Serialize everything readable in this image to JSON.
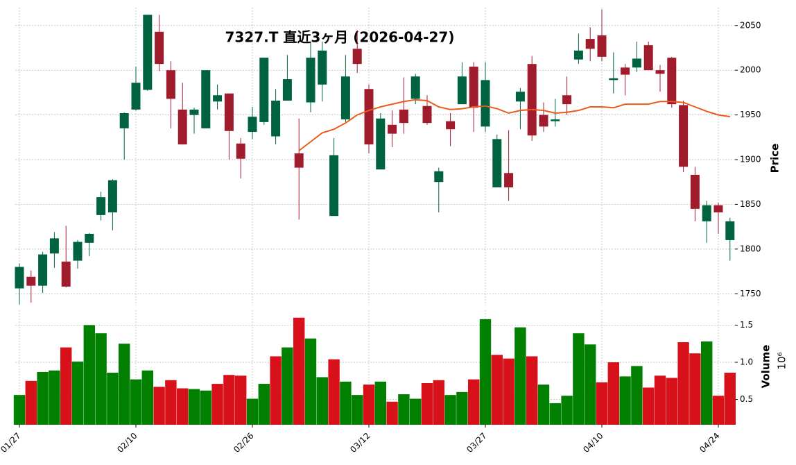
{
  "chart_data": {
    "type": "candlestick",
    "title": "7327.T  直近3ヶ月 (2026-04-27)",
    "categories": [
      "01/27",
      null,
      null,
      null,
      null,
      null,
      null,
      null,
      null,
      null,
      "02/10",
      null,
      null,
      null,
      null,
      null,
      null,
      null,
      null,
      null,
      "02/26",
      null,
      null,
      null,
      null,
      null,
      null,
      null,
      null,
      null,
      "03/12",
      null,
      null,
      null,
      null,
      null,
      null,
      null,
      null,
      null,
      "03/27",
      null,
      null,
      null,
      null,
      null,
      null,
      null,
      null,
      null,
      "04/10",
      null,
      null,
      null,
      null,
      null,
      null,
      null,
      null,
      null,
      "04/24",
      null
    ],
    "open": [
      1756,
      1769,
      1759,
      1795,
      1786,
      1787,
      1807,
      1838,
      1841,
      1935,
      1956,
      1978,
      2043,
      2000,
      1956,
      1950,
      1935,
      1965,
      1974,
      1918,
      1931,
      1942,
      1926,
      1966,
      1907,
      1964,
      1984,
      1837,
      1945,
      2024,
      1979,
      1889,
      1939,
      1956,
      1968,
      1960,
      1875,
      1943,
      1962,
      2004,
      1937,
      1869,
      1885,
      1965,
      2007,
      1950,
      1943,
      1972,
      2012,
      2035,
      2039,
      1989,
      2003,
      2003,
      2028,
      2000,
      2014,
      1961,
      1883,
      1831,
      1849,
      1810
    ],
    "high": [
      1784,
      1776,
      1797,
      1819,
      1826,
      1810,
      1818,
      1864,
      1878,
      1953,
      2004,
      2062,
      2062,
      2010,
      1986,
      1958,
      2000,
      1984,
      1974,
      1924,
      1959,
      2014,
      1979,
      2017,
      1946,
      2032,
      2032,
      1924,
      2017,
      2045,
      1984,
      1952,
      1955,
      1992,
      1996,
      1972,
      1891,
      1952,
      2009,
      2009,
      2009,
      1928,
      1933,
      1980,
      2016,
      1964,
      1968,
      1993,
      2041,
      2048,
      2068,
      2020,
      2007,
      2032,
      2032,
      2006,
      2015,
      1966,
      1892,
      1854,
      1852,
      1835
    ],
    "low": [
      1738,
      1740,
      1751,
      1779,
      1757,
      1778,
      1792,
      1832,
      1821,
      1900,
      1955,
      1977,
      1999,
      1935,
      1917,
      1929,
      1935,
      1956,
      1900,
      1879,
      1923,
      1939,
      1917,
      1966,
      1833,
      1953,
      1965,
      1837,
      1942,
      1997,
      1907,
      1889,
      1914,
      1929,
      1962,
      1939,
      1841,
      1915,
      1962,
      1931,
      1931,
      1869,
      1854,
      1934,
      1921,
      1931,
      1937,
      1950,
      2007,
      2010,
      2010,
      1974,
      1972,
      1998,
      2000,
      1976,
      1958,
      1886,
      1831,
      1807,
      1817,
      1787
    ],
    "close": [
      1780,
      1759,
      1794,
      1812,
      1758,
      1808,
      1817,
      1858,
      1877,
      1952,
      1986,
      2062,
      2007,
      1968,
      1917,
      1956,
      2000,
      1972,
      1932,
      1901,
      1948,
      2014,
      1966,
      1990,
      1891,
      2014,
      2022,
      1905,
      1993,
      2007,
      1917,
      1946,
      1929,
      1941,
      1993,
      1941,
      1887,
      1934,
      1993,
      1958,
      1989,
      1923,
      1869,
      1976,
      1927,
      1937,
      1945,
      1962,
      2022,
      2024,
      2015,
      1991,
      1995,
      2013,
      2000,
      1996,
      1962,
      1892,
      1845,
      1849,
      1841,
      1831
    ],
    "up_color": "#006340",
    "down_color": "#a01c2c",
    "ma": {
      "color": "#ea5b1b",
      "values": [
        null,
        null,
        null,
        null,
        null,
        null,
        null,
        null,
        null,
        null,
        null,
        null,
        null,
        null,
        null,
        null,
        null,
        null,
        null,
        null,
        null,
        null,
        null,
        null,
        1910,
        1920,
        1930,
        1934,
        1941,
        1950,
        1955,
        1959,
        1962,
        1965,
        1967,
        1966,
        1959,
        1956,
        1957,
        1959,
        1960,
        1957,
        1952,
        1955,
        1956,
        1955,
        1952,
        1953,
        1955,
        1959,
        1959,
        1958,
        1962,
        1962,
        1962,
        1965,
        1965,
        1964,
        1959,
        1954,
        1950,
        1948
      ]
    },
    "ylabel": "Price",
    "ylim": [
      1737,
      2070
    ],
    "yticks": [
      1750,
      1800,
      1850,
      1900,
      1950,
      2000,
      2050
    ],
    "grid": true,
    "volume": {
      "ylabel": "Volume",
      "scale_label": "10⁶",
      "up_color": "#007f00",
      "down_color": "#d7101a",
      "values": [
        0.56,
        0.75,
        0.87,
        0.89,
        1.2,
        1.01,
        1.5,
        1.39,
        0.86,
        1.25,
        0.77,
        0.89,
        0.67,
        0.76,
        0.65,
        0.64,
        0.62,
        0.71,
        0.83,
        0.82,
        0.51,
        0.71,
        1.08,
        1.2,
        1.6,
        1.32,
        0.8,
        1.04,
        0.74,
        0.56,
        0.7,
        0.74,
        0.47,
        0.57,
        0.51,
        0.72,
        0.76,
        0.56,
        0.6,
        0.77,
        1.58,
        1.1,
        1.05,
        1.47,
        1.08,
        0.7,
        0.45,
        0.55,
        1.39,
        1.24,
        0.73,
        1.0,
        0.81,
        0.95,
        0.66,
        0.82,
        0.79,
        1.27,
        1.12,
        1.28,
        0.55,
        0.86
      ],
      "ylim": [
        0.16,
        1.7
      ],
      "yticks": [
        0.5,
        {
          "value": 1,
          "label": "1.0"
        },
        1.5
      ]
    }
  }
}
